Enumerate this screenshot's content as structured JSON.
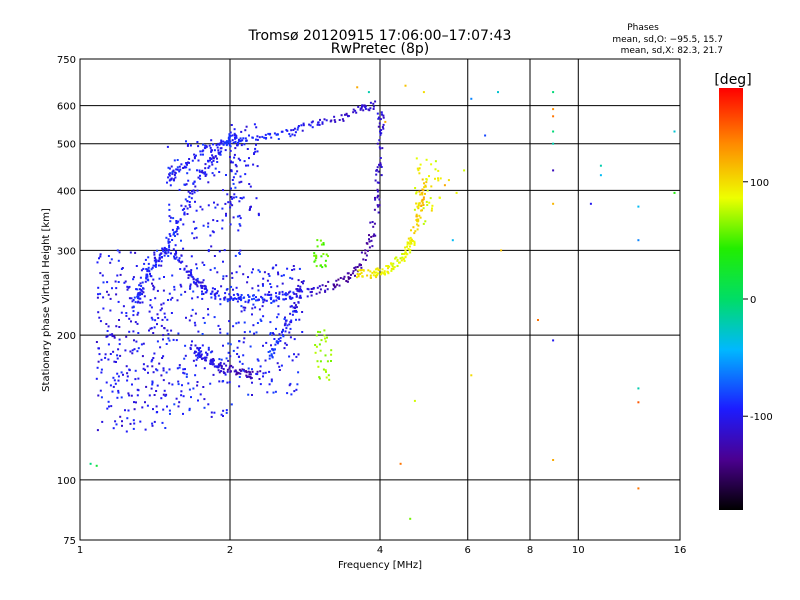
{
  "chart_data": {
    "type": "scatter",
    "title": "Tromsø 20120915 17:06:00–17:07:43",
    "subtitle": "RwPretec (8p)",
    "xlabel": "Frequency [MHz]",
    "ylabel": "Stationary phase Virtual Height [km]",
    "x_scale": "log",
    "y_scale": "log",
    "xlim": [
      1,
      16
    ],
    "ylim": [
      75,
      750
    ],
    "x_ticks": [
      1,
      2,
      4,
      6,
      8,
      10,
      16
    ],
    "y_ticks": [
      75,
      100,
      200,
      300,
      400,
      500,
      600,
      750
    ],
    "grid": true,
    "info": {
      "heading": "Phases",
      "line_o": "mean, sd,O: −95.5, 15.7",
      "line_x": "mean, sd,X:  82.3, 21.7"
    },
    "colorbar": {
      "label": "[deg]",
      "range": [
        -180,
        180
      ],
      "ticks": [
        100,
        0,
        -100
      ]
    },
    "markers": [
      [
        1.05,
        108,
        -5
      ],
      [
        1.08,
        107,
        20
      ],
      [
        6.9,
        640,
        -30
      ],
      [
        6.1,
        620,
        -60
      ],
      [
        6.5,
        520,
        -80
      ],
      [
        8.9,
        640,
        -5
      ],
      [
        8.9,
        590,
        130
      ],
      [
        8.9,
        570,
        140
      ],
      [
        8.9,
        530,
        -5
      ],
      [
        8.9,
        500,
        -20
      ],
      [
        8.9,
        440,
        -120
      ],
      [
        8.9,
        375,
        115
      ],
      [
        11.1,
        450,
        -20
      ],
      [
        11.1,
        430,
        -40
      ],
      [
        10.6,
        375,
        -100
      ],
      [
        13.2,
        370,
        -40
      ],
      [
        13.2,
        315,
        -60
      ],
      [
        13.2,
        155,
        -20
      ],
      [
        13.2,
        145,
        150
      ],
      [
        13.2,
        96,
        140
      ],
      [
        15.6,
        530,
        -30
      ],
      [
        15.6,
        395,
        40
      ],
      [
        8.9,
        195,
        -100
      ],
      [
        8.9,
        110,
        120
      ],
      [
        8.3,
        215,
        140
      ],
      [
        4.6,
        83,
        60
      ],
      [
        4.7,
        146,
        80
      ],
      [
        4.4,
        108,
        140
      ],
      [
        6.1,
        165,
        100
      ],
      [
        7.0,
        300,
        110
      ],
      [
        4.5,
        660,
        110
      ],
      [
        4.9,
        640,
        100
      ],
      [
        3.8,
        640,
        -20
      ],
      [
        3.6,
        655,
        120
      ],
      [
        4.1,
        555,
        120
      ],
      [
        5.7,
        395,
        90
      ],
      [
        5.5,
        420,
        100
      ],
      [
        5.9,
        440,
        80
      ],
      [
        5.6,
        315,
        -40
      ],
      [
        5.4,
        410,
        120
      ]
    ],
    "series": [
      {
        "phase": "O",
        "traces": [
          {
            "x": [
              1.55,
              1.62,
              1.7,
              1.8,
              1.95,
              2.1,
              2.3,
              2.55,
              2.85,
              3.15,
              3.45,
              3.7,
              3.85,
              3.95,
              4.0,
              4.02
            ],
            "y": [
              300,
              275,
              258,
              247,
              241,
              239,
              238,
              240,
              245,
              252,
              262,
              285,
              320,
              380,
              470,
              580
            ],
            "phase": [
              -95,
              -100,
              -105,
              -100,
              -95,
              -90,
              -90,
              -95,
              -110,
              -125,
              -135,
              -130,
              -125,
              -120,
              -115,
              -110
            ]
          },
          {
            "x": [
              1.5,
              1.6,
              1.75,
              1.95,
              2.2,
              2.5,
              2.8,
              3.2,
              3.6,
              3.9
            ],
            "y": [
              420,
              450,
              480,
              500,
              510,
              520,
              540,
              560,
              585,
              605
            ],
            "phase": [
              -100,
              -100,
              -95,
              -95,
              -90,
              -90,
              -100,
              -110,
              -115,
              -110
            ]
          },
          {
            "x": [
              1.28,
              1.33,
              1.4,
              1.48,
              1.55,
              1.63,
              1.72,
              1.85,
              1.95,
              2.05
            ],
            "y": [
              230,
              250,
              275,
              300,
              330,
              370,
              420,
              470,
              500,
              520
            ],
            "phase": [
              -95,
              -90,
              -90,
              -95,
              -90,
              -95,
              -100,
              -100,
              -90,
              -85
            ]
          },
          {
            "x": [
              1.68,
              1.75,
              1.85,
              1.95,
              2.1,
              2.3
            ],
            "y": [
              190,
              182,
              175,
              170,
              167,
              165
            ],
            "phase": [
              -100,
              -100,
              -110,
              -120,
              -125,
              -120
            ]
          },
          {
            "x": [
              2.4,
              2.55,
              2.7,
              2.8
            ],
            "y": [
              180,
              200,
              230,
              260
            ],
            "phase": [
              -80,
              -90,
              -105,
              -110
            ]
          }
        ],
        "clouds": [
          {
            "x": [
              1.08,
              1.5
            ],
            "y": [
              125,
              300
            ],
            "n": 300,
            "phase": [
              -100,
              15
            ]
          },
          {
            "x": [
              1.5,
              2.1
            ],
            "y": [
              135,
              510
            ],
            "n": 320,
            "phase": [
              -95,
              15
            ]
          },
          {
            "x": [
              2.1,
              2.8
            ],
            "y": [
              150,
              280
            ],
            "n": 150,
            "phase": [
              -95,
              15
            ]
          },
          {
            "x": [
              2.0,
              2.3
            ],
            "y": [
              350,
              550
            ],
            "n": 60,
            "phase": [
              -100,
              10
            ]
          }
        ]
      },
      {
        "phase": "X",
        "traces": [
          {
            "x": [
              3.6,
              3.85,
              4.1,
              4.3,
              4.5,
              4.65,
              4.75,
              4.85,
              4.9
            ],
            "y": [
              268,
              268,
              272,
              280,
              295,
              315,
              345,
              380,
              420
            ],
            "phase": [
              100,
              95,
              90,
              85,
              85,
              95,
              105,
              110,
              110
            ]
          }
        ],
        "clouds": [
          {
            "x": [
              2.95,
              3.15
            ],
            "y": [
              275,
              320
            ],
            "n": 25,
            "phase": [
              55,
              10
            ]
          },
          {
            "x": [
              2.95,
              3.2
            ],
            "y": [
              160,
              205
            ],
            "n": 30,
            "phase": [
              70,
              10
            ]
          },
          {
            "x": [
              4.7,
              5.3
            ],
            "y": [
              340,
              470
            ],
            "n": 40,
            "phase": [
              90,
              15
            ]
          }
        ]
      }
    ]
  }
}
